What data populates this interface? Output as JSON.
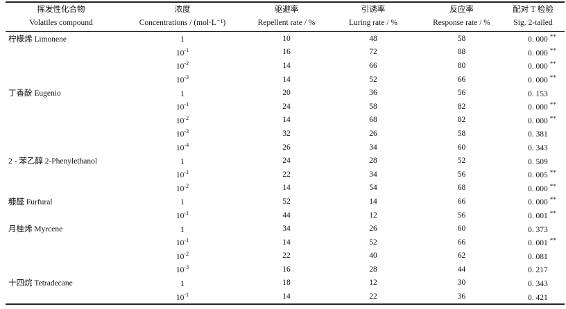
{
  "headers": [
    {
      "cn": "挥发性化合物",
      "en": "Volatiles compound"
    },
    {
      "cn": "浓度",
      "en": "Concentrations / (mol·L⁻¹)"
    },
    {
      "cn": "驱避率",
      "en": "Repellent rate / %"
    },
    {
      "cn": "引诱率",
      "en": "Luring rate / %"
    },
    {
      "cn": "反应率",
      "en": "Response rate / %"
    },
    {
      "cn": "配对 T 检验",
      "en": "Sig. 2-tailed"
    }
  ],
  "rows": [
    {
      "compound": "柠檬烯 Limonene",
      "base": "1",
      "exp": "",
      "repellent": "10",
      "luring": "48",
      "response": "58",
      "sig": "0. 000",
      "stars": "**"
    },
    {
      "compound": "",
      "base": "10",
      "exp": "-1",
      "repellent": "16",
      "luring": "72",
      "response": "88",
      "sig": "0. 000",
      "stars": "**"
    },
    {
      "compound": "",
      "base": "10",
      "exp": "-2",
      "repellent": "14",
      "luring": "66",
      "response": "80",
      "sig": "0. 000",
      "stars": "**"
    },
    {
      "compound": "",
      "base": "10",
      "exp": "-3",
      "repellent": "14",
      "luring": "52",
      "response": "66",
      "sig": "0. 000",
      "stars": "**"
    },
    {
      "compound": "丁香酚 Eugenio",
      "base": "1",
      "exp": "",
      "repellent": "20",
      "luring": "36",
      "response": "56",
      "sig": "0. 153",
      "stars": ""
    },
    {
      "compound": "",
      "base": "10",
      "exp": "-1",
      "repellent": "24",
      "luring": "58",
      "response": "82",
      "sig": "0. 000",
      "stars": "**"
    },
    {
      "compound": "",
      "base": "10",
      "exp": "-2",
      "repellent": "14",
      "luring": "68",
      "response": "82",
      "sig": "0. 000",
      "stars": "**"
    },
    {
      "compound": "",
      "base": "10",
      "exp": "-3",
      "repellent": "32",
      "luring": "26",
      "response": "58",
      "sig": "0. 381",
      "stars": ""
    },
    {
      "compound": "",
      "base": "10",
      "exp": "-4",
      "repellent": "26",
      "luring": "34",
      "response": "60",
      "sig": "0. 343",
      "stars": ""
    },
    {
      "compound": "2 - 苯乙醇 2-Phenylethanol",
      "base": "1",
      "exp": "",
      "repellent": "24",
      "luring": "28",
      "response": "52",
      "sig": "0. 509",
      "stars": ""
    },
    {
      "compound": "",
      "base": "10",
      "exp": "-1",
      "repellent": "22",
      "luring": "34",
      "response": "56",
      "sig": "0. 005",
      "stars": "**"
    },
    {
      "compound": "",
      "base": "10",
      "exp": "-2",
      "repellent": "14",
      "luring": "54",
      "response": "68",
      "sig": "0. 000",
      "stars": "**"
    },
    {
      "compound": "糠醛 Furfural",
      "base": "1",
      "exp": "",
      "repellent": "52",
      "luring": "14",
      "response": "66",
      "sig": "0. 000",
      "stars": "**"
    },
    {
      "compound": "",
      "base": "10",
      "exp": "-1",
      "repellent": "44",
      "luring": "12",
      "response": "56",
      "sig": "0. 001",
      "stars": "**"
    },
    {
      "compound": "月桂烯 Myrcene",
      "base": "1",
      "exp": "",
      "repellent": "34",
      "luring": "26",
      "response": "60",
      "sig": "0. 373",
      "stars": ""
    },
    {
      "compound": "",
      "base": "10",
      "exp": "-1",
      "repellent": "14",
      "luring": "52",
      "response": "66",
      "sig": "0. 001",
      "stars": "**"
    },
    {
      "compound": "",
      "base": "10",
      "exp": "-2",
      "repellent": "22",
      "luring": "40",
      "response": "62",
      "sig": "0. 081",
      "stars": ""
    },
    {
      "compound": "",
      "base": "10",
      "exp": "-3",
      "repellent": "16",
      "luring": "28",
      "response": "44",
      "sig": "0. 217",
      "stars": ""
    },
    {
      "compound": "十四烷 Tetradecane",
      "base": "1",
      "exp": "",
      "repellent": "18",
      "luring": "12",
      "response": "30",
      "sig": "0. 343",
      "stars": ""
    },
    {
      "compound": "",
      "base": "10",
      "exp": "-1",
      "repellent": "14",
      "luring": "22",
      "response": "36",
      "sig": "0. 421",
      "stars": ""
    }
  ]
}
